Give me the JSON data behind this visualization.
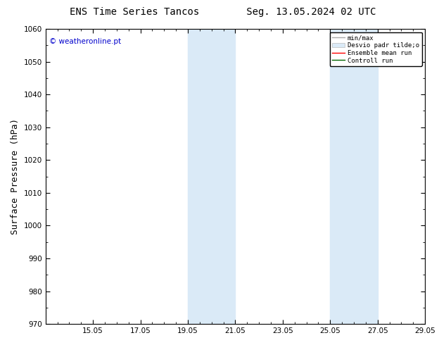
{
  "title_left": "ENS Time Series Tancos",
  "title_right": "Seg. 13.05.2024 02 UTC",
  "ylabel": "Surface Pressure (hPa)",
  "ylim": [
    970,
    1060
  ],
  "yticks": [
    970,
    980,
    990,
    1000,
    1010,
    1020,
    1030,
    1040,
    1050,
    1060
  ],
  "xtick_labels": [
    "15.05",
    "17.05",
    "19.05",
    "21.05",
    "23.05",
    "25.05",
    "27.05",
    "29.05"
  ],
  "xtick_positions": [
    2,
    4,
    6,
    8,
    10,
    12,
    14,
    16
  ],
  "xlim": [
    0,
    16
  ],
  "shaded_bands": [
    {
      "x_start": 6,
      "x_end": 7,
      "color": "#daeaf7"
    },
    {
      "x_start": 7,
      "x_end": 8,
      "color": "#daeaf7"
    },
    {
      "x_start": 12,
      "x_end": 13,
      "color": "#daeaf7"
    },
    {
      "x_start": 13,
      "x_end": 14,
      "color": "#daeaf7"
    }
  ],
  "watermark": "© weatheronline.pt",
  "watermark_color": "#0000cc",
  "bg_color": "#ffffff",
  "plot_bg_color": "#ffffff",
  "border_color": "#000000",
  "tick_label_fontsize": 7.5,
  "axis_label_fontsize": 9,
  "title_fontsize": 10
}
